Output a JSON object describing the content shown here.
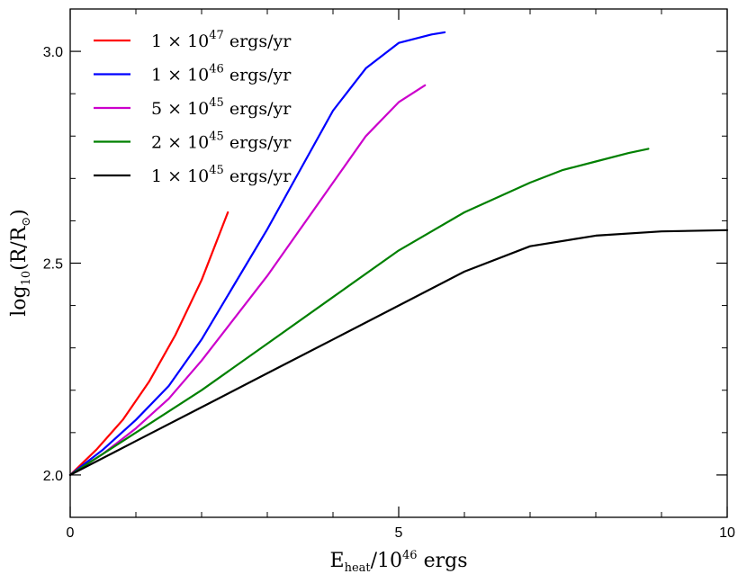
{
  "chart_data": {
    "type": "line",
    "title": "",
    "xlabel_main": "E",
    "xlabel_sub": "heat",
    "xlabel_mid": "/10",
    "xlabel_sup": "46",
    "xlabel_end": " ergs",
    "ylabel_main": "log",
    "ylabel_sub": "10",
    "ylabel_mid": "(R/R",
    "ylabel_sub2": "⊙",
    "ylabel_end": ")",
    "xlim": [
      0,
      10
    ],
    "ylim": [
      1.9,
      3.1
    ],
    "x_ticks": [
      0,
      5,
      10
    ],
    "x_tick_labels": [
      "0",
      "5",
      "10"
    ],
    "y_ticks": [
      2.0,
      2.5,
      3.0
    ],
    "y_tick_labels": [
      "2.0",
      "2.5",
      "3.0"
    ],
    "x_minor_ticks": [
      1,
      2,
      3,
      4,
      6,
      7,
      8,
      9
    ],
    "y_minor_ticks": [
      2.1,
      2.2,
      2.3,
      2.4,
      2.6,
      2.7,
      2.8,
      2.9
    ],
    "legend_position": "top-left",
    "series": [
      {
        "name": "1 × 10^47 ergs/yr",
        "label_pre": "1 × 10",
        "label_sup": "47",
        "label_post": " ergs/yr",
        "color": "#ff0000",
        "x": [
          0,
          0.4,
          0.8,
          1.2,
          1.6,
          2.0,
          2.4
        ],
        "y": [
          2.0,
          2.06,
          2.13,
          2.22,
          2.33,
          2.46,
          2.62
        ]
      },
      {
        "name": "1 × 10^46 ergs/yr",
        "label_pre": "1 × 10",
        "label_sup": "46",
        "label_post": " ergs/yr",
        "color": "#0000ff",
        "x": [
          0,
          0.5,
          1.0,
          1.5,
          2.0,
          2.5,
          3.0,
          3.5,
          4.0,
          4.5,
          5.0,
          5.5,
          5.7
        ],
        "y": [
          2.0,
          2.06,
          2.13,
          2.21,
          2.32,
          2.45,
          2.58,
          2.72,
          2.86,
          2.96,
          3.02,
          3.04,
          3.045
        ]
      },
      {
        "name": "5 × 10^45 ergs/yr",
        "label_pre": "5 × 10",
        "label_sup": "45",
        "label_post": " ergs/yr",
        "color": "#cc00cc",
        "x": [
          0,
          0.5,
          1.0,
          1.5,
          2.0,
          2.5,
          3.0,
          3.5,
          4.0,
          4.5,
          5.0,
          5.4
        ],
        "y": [
          2.0,
          2.05,
          2.11,
          2.18,
          2.27,
          2.37,
          2.47,
          2.58,
          2.69,
          2.8,
          2.88,
          2.92
        ]
      },
      {
        "name": "2 × 10^45 ergs/yr",
        "label_pre": "2 × 10",
        "label_sup": "45",
        "label_post": " ergs/yr",
        "color": "#008000",
        "x": [
          0,
          1.0,
          2.0,
          3.0,
          4.0,
          5.0,
          6.0,
          7.0,
          7.5,
          8.0,
          8.5,
          8.8
        ],
        "y": [
          2.0,
          2.1,
          2.2,
          2.31,
          2.42,
          2.53,
          2.62,
          2.69,
          2.72,
          2.74,
          2.76,
          2.77
        ]
      },
      {
        "name": "1 × 10^45 ergs/yr",
        "label_pre": "1 × 10",
        "label_sup": "45",
        "label_post": " ergs/yr",
        "color": "#000000",
        "x": [
          0,
          1.0,
          2.0,
          3.0,
          4.0,
          5.0,
          6.0,
          7.0,
          8.0,
          9.0,
          10.0
        ],
        "y": [
          2.0,
          2.08,
          2.16,
          2.24,
          2.32,
          2.4,
          2.48,
          2.54,
          2.565,
          2.575,
          2.578
        ]
      }
    ]
  }
}
